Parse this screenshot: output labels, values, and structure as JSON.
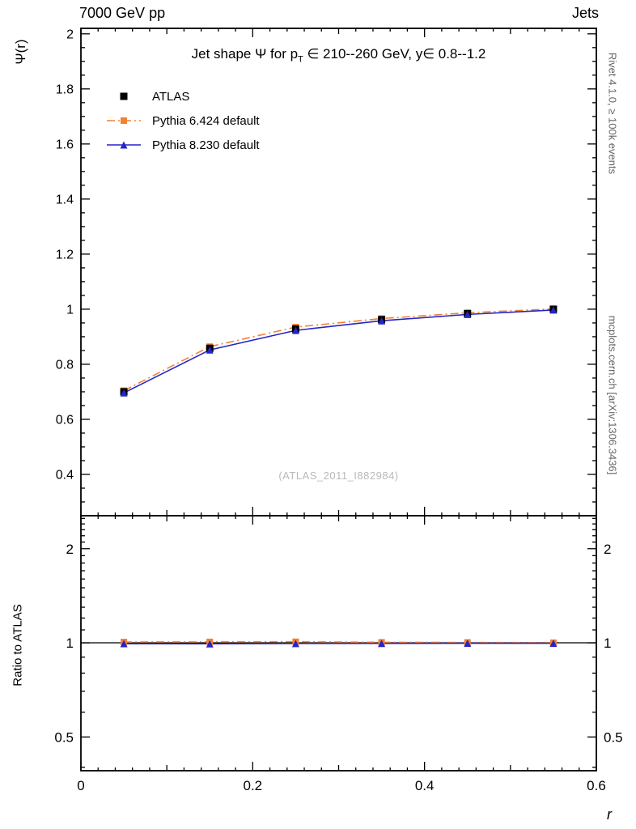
{
  "header": {
    "left": "7000 GeV pp",
    "right": "Jets"
  },
  "panel_title": {
    "prefix": "Jet shape Ψ for p",
    "sub": "T",
    "suffix": " ∈ 210--260 GeV, y∈ 0.8--1.2"
  },
  "watermark": "(ATLAS_2011_I882984)",
  "side_notes": {
    "top": "Rivet 4.1.0, ≥ 100k events",
    "bottom": "mcplots.cern.ch [arXiv:1306.3436]"
  },
  "axes": {
    "y_label": "Ψ(r)",
    "ratio_label": "Ratio to ATLAS",
    "x_label": "r"
  },
  "legend": {
    "items": [
      {
        "label": "ATLAS"
      },
      {
        "label": "Pythia 6.424 default"
      },
      {
        "label": "Pythia 8.230 default"
      }
    ]
  },
  "chart_data": {
    "type": "line",
    "title": "Jet shape Ψ for pT ∈ 210--260 GeV, y ∈ 0.8--1.2",
    "xlabel": "r",
    "ylabel": "Ψ(r)",
    "ratio_ylabel": "Ratio to ATLAS",
    "xlim": [
      0,
      0.6
    ],
    "ylim": [
      0.25,
      2.02
    ],
    "ratio_ylim": [
      0.39,
      2.55
    ],
    "ratio_yscale": "log",
    "grid": false,
    "legend_position": "top-left",
    "x": [
      0.05,
      0.15,
      0.25,
      0.35,
      0.45,
      0.55
    ],
    "x_major_ticks": [
      0,
      0.2,
      0.4,
      0.6
    ],
    "x_major_labels": [
      "0",
      "0.2",
      "0.4",
      "0.6"
    ],
    "y_major_ticks": [
      0.4,
      0.6,
      0.8,
      1.0,
      1.2,
      1.4,
      1.6,
      1.8,
      2.0
    ],
    "y_major_labels": [
      "0.4",
      "0.6",
      "0.8",
      "1",
      "1.2",
      "1.4",
      "1.6",
      "1.8",
      "2"
    ],
    "ratio_major_ticks": [
      0.5,
      1,
      2
    ],
    "ratio_major_labels": [
      "0.5",
      "1",
      "2"
    ],
    "ratio_minor_ticks": [
      0.4,
      0.6,
      0.7,
      0.8,
      0.9,
      1.1,
      1.2,
      1.3,
      1.4,
      1.5,
      1.6,
      1.7,
      1.8,
      1.9,
      2.1,
      2.2,
      2.3,
      2.4,
      2.5
    ],
    "series": [
      {
        "name": "ATLAS",
        "kind": "data",
        "color": "#000000",
        "marker": "square",
        "line": "none",
        "values": [
          0.7,
          0.858,
          0.928,
          0.962,
          0.984,
          1.0
        ],
        "yerr": [
          0.01,
          0.007,
          0.005,
          0.004,
          0.003,
          0.002
        ],
        "ratio": [
          1,
          1,
          1,
          1,
          1,
          1
        ]
      },
      {
        "name": "Pythia 6.424 default",
        "kind": "mc",
        "color": "#f28132",
        "marker": "square",
        "line": "dashdot",
        "values": [
          0.704,
          0.864,
          0.935,
          0.966,
          0.987,
          1.001
        ],
        "ratio": [
          1.006,
          1.007,
          1.008,
          1.004,
          1.003,
          1.001
        ]
      },
      {
        "name": "Pythia 8.230 default",
        "kind": "mc",
        "color": "#2525c8",
        "marker": "triangle",
        "line": "solid",
        "values": [
          0.696,
          0.852,
          0.923,
          0.958,
          0.981,
          0.997
        ],
        "ratio": [
          0.994,
          0.993,
          0.995,
          0.996,
          0.997,
          0.997
        ]
      }
    ]
  }
}
